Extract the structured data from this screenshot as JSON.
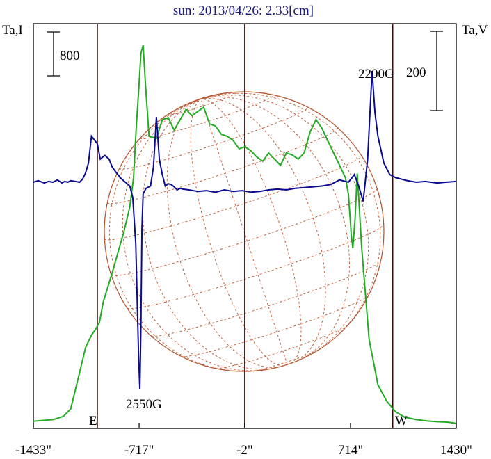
{
  "chart_data": {
    "type": "line",
    "title": "sun: 2013/04/26: 2.33[cm]",
    "left_axis_label": "Ta,I",
    "right_axis_label": "Ta,V",
    "scale_bar_left": "800",
    "scale_bar_right": "200",
    "x_ticks": [
      "-1433\"",
      "-717\"",
      "-2\"",
      "714\"",
      "1430\""
    ],
    "x_tick_values": [
      -1433,
      -717,
      -2,
      714,
      1430
    ],
    "xlim": [
      -1433,
      1430
    ],
    "vertical_markers": [
      -1000,
      -2,
      1000
    ],
    "limb_labels": {
      "east": "E",
      "west": "W"
    },
    "annotations": [
      {
        "text": "2550G",
        "x": -695
      },
      {
        "text": "2200G",
        "x": 695
      }
    ],
    "grid": false,
    "colors": {
      "stokes_i": "#22aa22",
      "stokes_v": "#0a0a90",
      "sun_disk": "#b0522a",
      "markers": "#3a0a0a",
      "title": "#1a1a7a"
    },
    "series": [
      {
        "key": "I",
        "x": [
          -1433,
          -1300,
          -1230,
          -1180,
          -1120,
          -1080,
          -1040,
          -1010,
          -985,
          -960,
          -900,
          -860,
          -820,
          -780,
          -755,
          -735,
          -720,
          -705,
          -690,
          -675,
          -650,
          -600,
          -560,
          -520,
          -480,
          -440,
          -400,
          -360,
          -320,
          -280,
          -240,
          -200,
          -160,
          -120,
          -80,
          -40,
          0,
          40,
          80,
          120,
          160,
          200,
          240,
          280,
          320,
          360,
          400,
          440,
          480,
          520,
          560,
          600,
          640,
          680,
          700,
          720,
          730,
          745,
          760,
          790,
          840,
          900,
          960,
          1020,
          1080,
          1160,
          1230,
          1300,
          1370,
          1430
        ],
        "values": [
          20,
          60,
          140,
          320,
          1200,
          1800,
          2100,
          2250,
          2420,
          2900,
          3600,
          4100,
          4600,
          5200,
          5900,
          7200,
          8000,
          8900,
          9100,
          8200,
          6900,
          6850,
          7300,
          7350,
          7050,
          7300,
          7550,
          7400,
          7500,
          7600,
          7200,
          7150,
          6950,
          6900,
          6800,
          6600,
          6650,
          6550,
          6400,
          6300,
          6500,
          6350,
          6200,
          6500,
          6450,
          6350,
          6500,
          7000,
          7300,
          7100,
          6800,
          6500,
          6200,
          5900,
          5500,
          4500,
          4200,
          4900,
          6000,
          4200,
          2000,
          900,
          500,
          250,
          120,
          60,
          30,
          10,
          0,
          -30
        ]
      },
      {
        "key": "V",
        "x": [
          -1433,
          -1400,
          -1360,
          -1330,
          -1300,
          -1270,
          -1240,
          -1220,
          -1200,
          -1180,
          -1150,
          -1120,
          -1100,
          -1080,
          -1060,
          -1040,
          -1000,
          -980,
          -950,
          -920,
          -900,
          -870,
          -840,
          -810,
          -780,
          -760,
          -740,
          -720,
          -712,
          -705,
          -698,
          -690,
          -670,
          -640,
          -620,
          -600,
          -580,
          -560,
          -540,
          -520,
          -500,
          -480,
          -460,
          -440,
          -420,
          -380,
          -320,
          -260,
          -200,
          -140,
          -80,
          -20,
          40,
          100,
          160,
          220,
          280,
          340,
          400,
          460,
          520,
          580,
          640,
          700,
          740,
          770,
          800,
          830,
          860,
          880,
          900,
          940,
          980,
          1020,
          1060,
          1100,
          1160,
          1220,
          1300,
          1360,
          1430
        ],
        "values": [
          0,
          2,
          -1,
          1,
          0,
          3,
          -1,
          1,
          0,
          2,
          1,
          0,
          4,
          12,
          25,
          60,
          50,
          30,
          35,
          30,
          20,
          12,
          5,
          0,
          -5,
          -20,
          -80,
          -230,
          -270,
          -190,
          -60,
          -15,
          -8,
          -5,
          20,
          85,
          30,
          10,
          -5,
          -2,
          -3,
          -6,
          -10,
          -8,
          -9,
          -10,
          -12,
          -11,
          -13,
          -10,
          -12,
          -11,
          -13,
          -12,
          -10,
          -9,
          -10,
          -8,
          -7,
          -6,
          -5,
          -3,
          3,
          0,
          10,
          -5,
          -25,
          30,
          145,
          90,
          60,
          25,
          10,
          6,
          4,
          2,
          0,
          1,
          -1,
          0,
          1
        ]
      }
    ]
  }
}
